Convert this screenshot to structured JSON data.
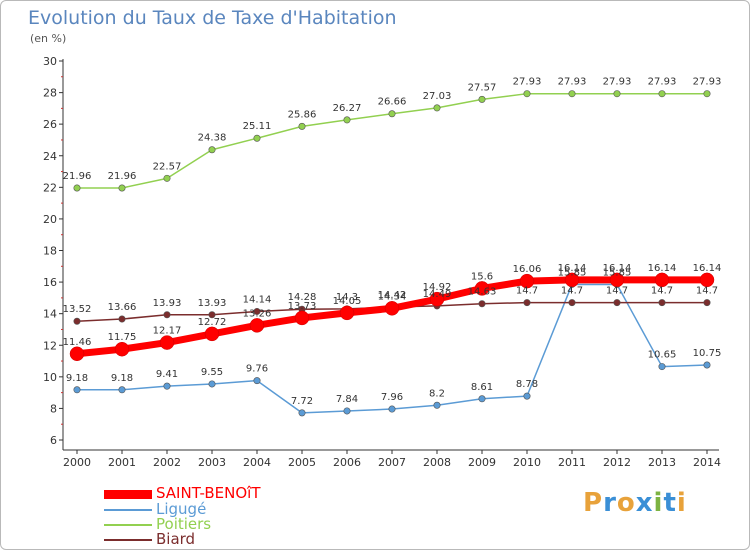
{
  "title": "Evolution du Taux de Taxe d'Habitation",
  "subtitle": "(en %)",
  "chart_data": {
    "type": "line",
    "x": [
      "2000",
      "2001",
      "2002",
      "2003",
      "2004",
      "2005",
      "2006",
      "2007",
      "2008",
      "2009",
      "2010",
      "2011",
      "2012",
      "2013",
      "2014"
    ],
    "ylim": [
      6,
      30
    ],
    "yticks": [
      "6",
      "8",
      "10",
      "12",
      "14",
      "16",
      "18",
      "20",
      "22",
      "24",
      "26",
      "28",
      "30"
    ],
    "grid": false,
    "legend_position": "bottom-left",
    "series": [
      {
        "name": "SAINT-BENOîT",
        "color": "#ff0000",
        "values": [
          11.46,
          11.75,
          12.17,
          12.72,
          13.26,
          13.73,
          14.05,
          14.34,
          14.92,
          15.6,
          16.06,
          16.14,
          16.14,
          16.14,
          16.14
        ],
        "labels": [
          "11.46",
          "11.75",
          "12.17",
          "12.72",
          "13.26",
          "13.73",
          "14.05",
          "14.34",
          "14.92",
          "15.6",
          "16.06",
          "16.14",
          "16.14",
          "16.14",
          "16.14"
        ]
      },
      {
        "name": "Ligugé",
        "color": "#5b9bd5",
        "values": [
          9.18,
          9.18,
          9.41,
          9.55,
          9.76,
          7.72,
          7.84,
          7.96,
          8.2,
          8.61,
          8.78,
          15.85,
          15.85,
          10.65,
          10.75
        ],
        "labels": [
          "9.18",
          "9.18",
          "9.41",
          "9.55",
          "9.76",
          "7.72",
          "7.84",
          "7.96",
          "8.2",
          "8.61",
          "8.78",
          "15.85",
          "15.85",
          "10.65",
          "10.75"
        ]
      },
      {
        "name": "Poitiers",
        "color": "#92d050",
        "values": [
          21.96,
          21.96,
          22.57,
          24.38,
          25.11,
          25.86,
          26.27,
          26.66,
          27.03,
          27.57,
          27.93,
          27.93,
          27.93,
          27.93,
          27.93
        ],
        "labels": [
          "21.96",
          "21.96",
          "22.57",
          "24.38",
          "25.11",
          "25.86",
          "26.27",
          "26.66",
          "27.03",
          "27.57",
          "27.93",
          "27.93",
          "27.93",
          "27.93",
          "27.93"
        ]
      },
      {
        "name": "Biard",
        "color": "#7b2d2d",
        "values": [
          13.52,
          13.66,
          13.93,
          13.93,
          14.14,
          14.28,
          14.3,
          14.42,
          14.49,
          14.63,
          14.7,
          14.7,
          14.7,
          14.7,
          14.7
        ],
        "labels": [
          "13.52",
          "13.66",
          "13.93",
          "13.93",
          "14.14",
          "14.28",
          "14.3",
          "14.42",
          "14.49",
          "14.63",
          "14.7",
          "14.7",
          "14.7",
          "14.7",
          "14.7"
        ]
      }
    ]
  },
  "legend": [
    {
      "label": "SAINT-BENOîT",
      "color": "#ff0000",
      "thick": true
    },
    {
      "label": "Ligugé",
      "color": "#5b9bd5",
      "thick": false
    },
    {
      "label": "Poitiers",
      "color": "#92d050",
      "thick": false
    },
    {
      "label": "Biard",
      "color": "#7b2d2d",
      "thick": false
    }
  ],
  "logo": {
    "text": "Proxiti",
    "letters": [
      "P",
      "r",
      "o",
      "x",
      "i",
      "t",
      "i"
    ],
    "colors": [
      "#e8a23a",
      "#3a8fd6",
      "#e8a23a",
      "#3a8fd6",
      "#7cb342",
      "#3a8fd6",
      "#e8a23a"
    ]
  }
}
